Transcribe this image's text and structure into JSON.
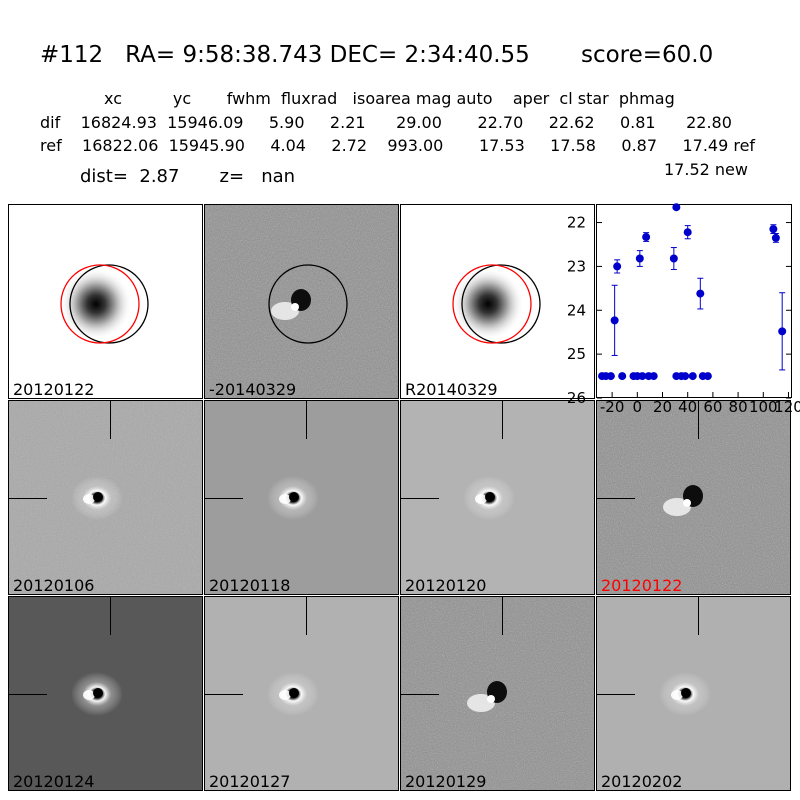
{
  "header": {
    "title": "#112   RA= 9:58:38.743 DEC= 2:34:40.55       score=60.0",
    "columns_line": "xc          yc       fwhm  fluxrad   isoarea mag auto    aper  cl star  phmag",
    "dif_line": "dif    16824.93  15946.09     5.90     2.21      29.00       22.70     22.62     0.81      22.80",
    "ref_line": "ref    16822.06  15945.90     4.04     2.72    993.00       17.53     17.58     0.87     17.49 ref",
    "new_line": "17.52 new",
    "dist_line": "dist=  2.87       z=   nan"
  },
  "stamps": [
    {
      "label": "20120122",
      "highlight": false
    },
    {
      "label": "-20140329",
      "highlight": false
    },
    {
      "label": "R20140329",
      "highlight": false
    },
    {
      "label": "20120106",
      "highlight": false
    },
    {
      "label": "20120118",
      "highlight": false
    },
    {
      "label": "20120120",
      "highlight": false
    },
    {
      "label": "20120122",
      "highlight": true
    },
    {
      "label": "20120124",
      "highlight": false
    },
    {
      "label": "20120127",
      "highlight": false
    },
    {
      "label": "20120129",
      "highlight": false
    },
    {
      "label": "20120202",
      "highlight": false
    }
  ],
  "colors": {
    "series": "#0000cc",
    "highlight": "#ff0000",
    "circle_black": "#000000",
    "circle_red": "#ff0000"
  },
  "chart_data": {
    "type": "scatter",
    "title": "",
    "xlabel": "",
    "ylabel": "",
    "xlim": [
      -32,
      122
    ],
    "ylim": [
      26,
      21.6
    ],
    "y_inverted": true,
    "xticks": [
      -20,
      0,
      20,
      40,
      60,
      80,
      100,
      120
    ],
    "xtick_labels": [
      "-20",
      "0",
      "20",
      "40",
      "60",
      "80",
      "100",
      "120"
    ],
    "yticks": [
      22,
      23,
      24,
      25,
      26
    ],
    "series": [
      {
        "points": [
          {
            "x": -28,
            "y": 25.5,
            "err": 0
          },
          {
            "x": -25,
            "y": 25.5,
            "err": 0
          },
          {
            "x": -21,
            "y": 25.5,
            "err": 0
          },
          {
            "x": -18,
            "y": 24.23,
            "err": 0.8
          },
          {
            "x": -16,
            "y": 23.0,
            "err": 0.15
          },
          {
            "x": -12,
            "y": 25.5,
            "err": 0
          },
          {
            "x": -3,
            "y": 25.5,
            "err": 0
          },
          {
            "x": 0,
            "y": 25.5,
            "err": 0
          },
          {
            "x": 2,
            "y": 22.82,
            "err": 0.18
          },
          {
            "x": 4,
            "y": 25.5,
            "err": 0
          },
          {
            "x": 7,
            "y": 22.33,
            "err": 0.1
          },
          {
            "x": 9,
            "y": 25.5,
            "err": 0
          },
          {
            "x": 13,
            "y": 25.5,
            "err": 0
          },
          {
            "x": 29,
            "y": 22.82,
            "err": 0.25
          },
          {
            "x": 31,
            "y": 21.65,
            "err": 0
          },
          {
            "x": 31,
            "y": 25.5,
            "err": 0
          },
          {
            "x": 35,
            "y": 25.5,
            "err": 0
          },
          {
            "x": 38,
            "y": 25.5,
            "err": 0
          },
          {
            "x": 40,
            "y": 22.22,
            "err": 0.15
          },
          {
            "x": 44,
            "y": 25.5,
            "err": 0
          },
          {
            "x": 50,
            "y": 23.62,
            "err": 0.35
          },
          {
            "x": 52,
            "y": 25.5,
            "err": 0
          },
          {
            "x": 56,
            "y": 25.5,
            "err": 0
          },
          {
            "x": 108,
            "y": 22.15,
            "err": 0.1
          },
          {
            "x": 110,
            "y": 22.35,
            "err": 0.1
          },
          {
            "x": 115,
            "y": 24.48,
            "err": 0.88
          }
        ]
      }
    ]
  }
}
